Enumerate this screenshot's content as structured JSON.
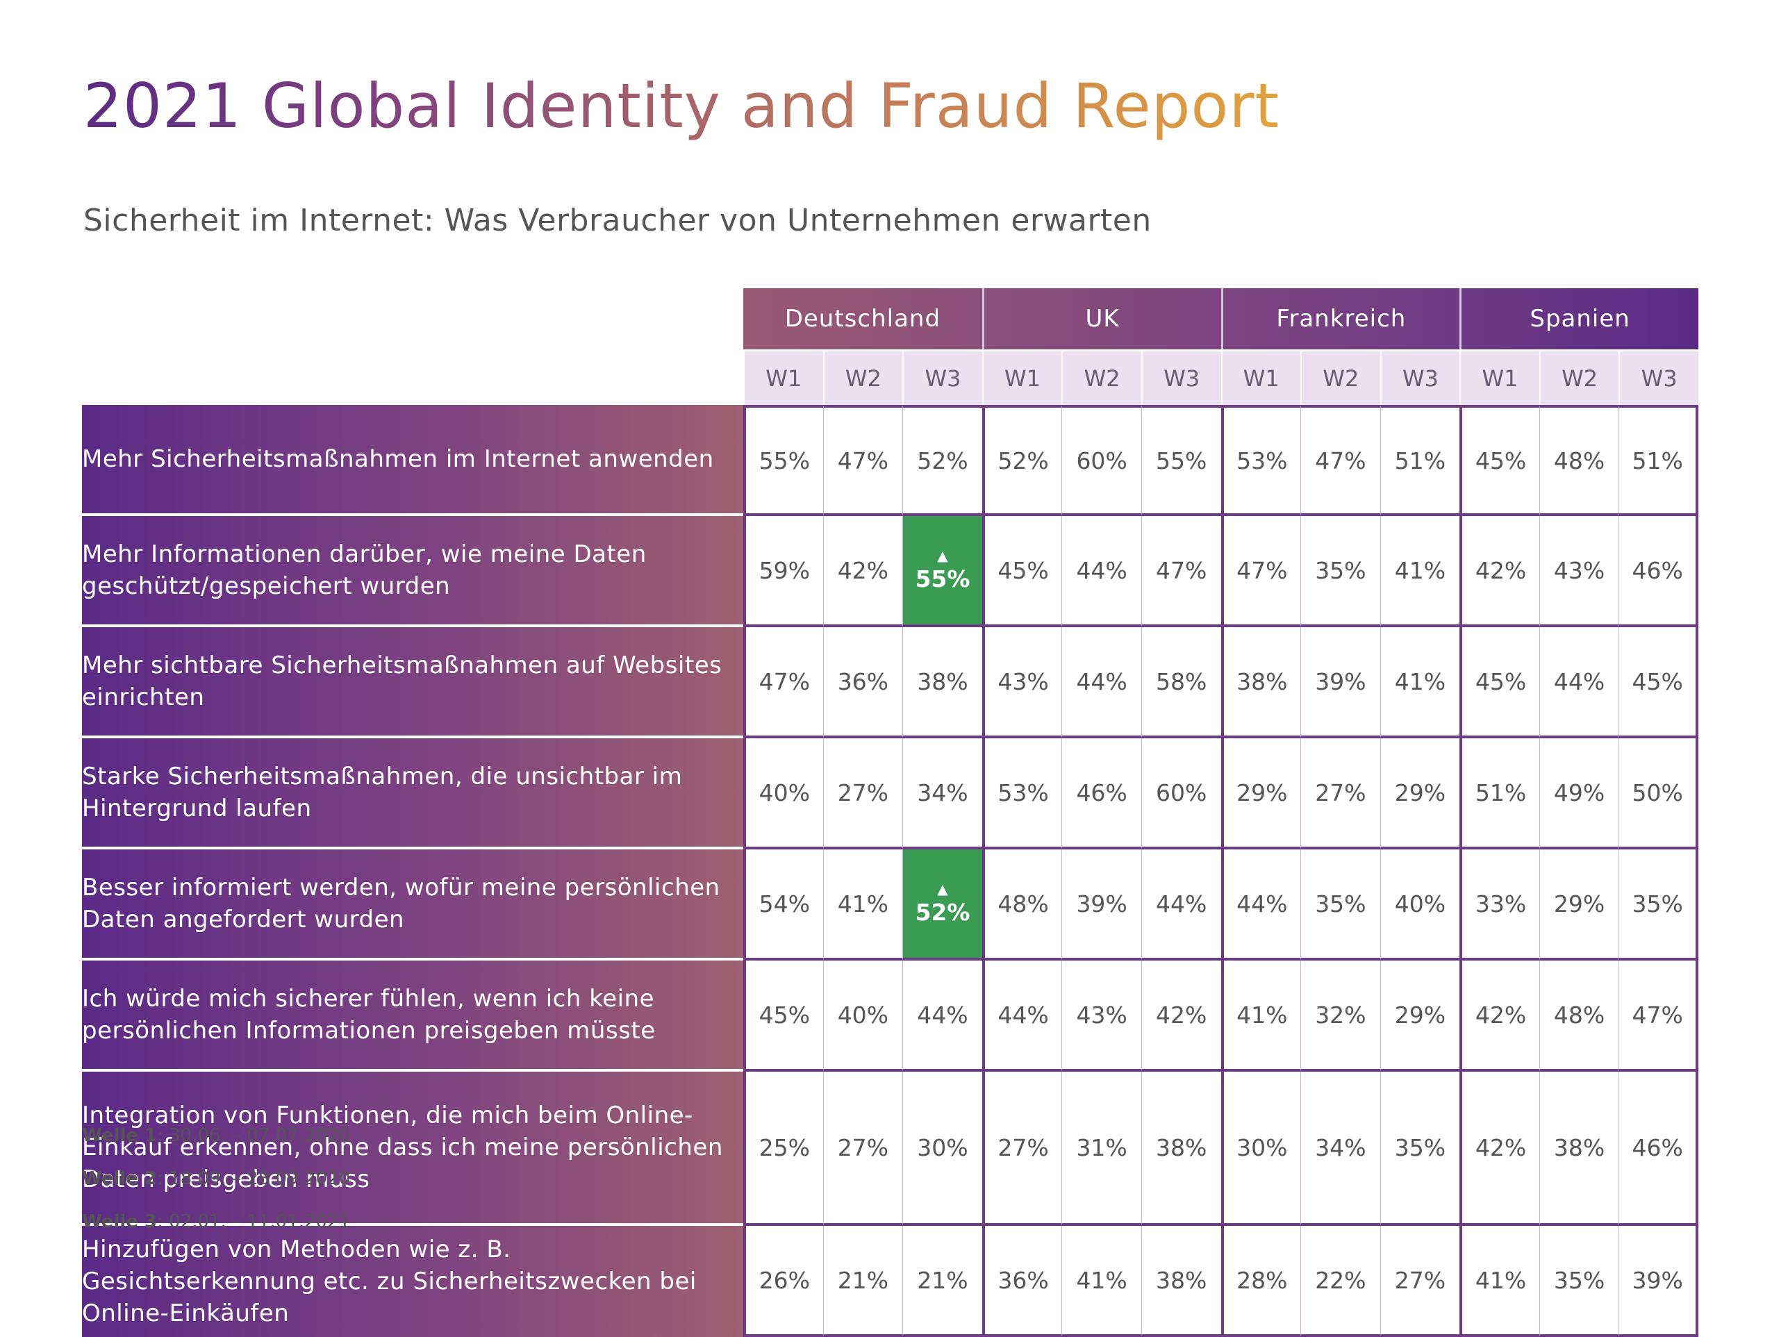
{
  "title": "2021 Global Identity and Fraud Report",
  "subtitle": "Sicherheit im Internet: Was Verbraucher von Unternehmen erwarten",
  "colors": {
    "title_gradient": [
      "#5b2a86",
      "#e3a23a"
    ],
    "label_gradient": [
      "#5b2a86",
      "#9e6070"
    ],
    "highlight": "#3a9b52",
    "wave_header_bg": "#ebe1f0",
    "group_border": "#6e3a86"
  },
  "chart_data": {
    "type": "table",
    "countries": [
      "Deutschland",
      "UK",
      "Frankreich",
      "Spanien"
    ],
    "waves": [
      "W1",
      "W2",
      "W3"
    ],
    "rows": [
      {
        "label": "Mehr Sicherheitsmaßnahmen im Internet anwenden",
        "values": [
          "55%",
          "47%",
          "52%",
          "52%",
          "60%",
          "55%",
          "53%",
          "47%",
          "51%",
          "45%",
          "48%",
          "51%"
        ]
      },
      {
        "label": "Mehr Informationen darüber, wie meine Daten geschützt/gespeichert wurden",
        "values": [
          "59%",
          "42%",
          "55%",
          "45%",
          "44%",
          "47%",
          "47%",
          "35%",
          "41%",
          "42%",
          "43%",
          "46%"
        ],
        "highlight_index": 2
      },
      {
        "label": "Mehr sichtbare Sicherheitsmaßnahmen auf Websites einrichten",
        "values": [
          "47%",
          "36%",
          "38%",
          "43%",
          "44%",
          "58%",
          "38%",
          "39%",
          "41%",
          "45%",
          "44%",
          "45%"
        ]
      },
      {
        "label": "Starke Sicherheitsmaßnahmen, die unsichtbar im Hintergrund laufen",
        "values": [
          "40%",
          "27%",
          "34%",
          "53%",
          "46%",
          "60%",
          "29%",
          "27%",
          "29%",
          "51%",
          "49%",
          "50%"
        ]
      },
      {
        "label": "Besser informiert werden, wofür meine persönlichen Daten angefordert wurden",
        "values": [
          "54%",
          "41%",
          "52%",
          "48%",
          "39%",
          "44%",
          "44%",
          "35%",
          "40%",
          "33%",
          "29%",
          "35%"
        ],
        "highlight_index": 2
      },
      {
        "label": "Ich würde mich sicherer fühlen, wenn ich keine persönlichen Informationen preisgeben müsste",
        "values": [
          "45%",
          "40%",
          "44%",
          "44%",
          "43%",
          "42%",
          "41%",
          "32%",
          "29%",
          "42%",
          "48%",
          "47%"
        ]
      },
      {
        "label": "Integration von Funktionen, die mich beim Online-Einkauf erkennen, ohne dass ich meine persönlichen Daten preisgeben muss",
        "values": [
          "25%",
          "27%",
          "30%",
          "27%",
          "31%",
          "38%",
          "30%",
          "34%",
          "35%",
          "42%",
          "38%",
          "46%"
        ]
      },
      {
        "label": "Hinzufügen von Methoden wie z. B. Gesichtserkennung etc. zu Sicherheitszwecken bei Online-Einkäufen",
        "values": [
          "26%",
          "21%",
          "21%",
          "36%",
          "41%",
          "38%",
          "28%",
          "22%",
          "27%",
          "41%",
          "35%",
          "39%"
        ]
      }
    ],
    "highlight_marker": "▲"
  },
  "notes": [
    {
      "label": "Welle 1",
      "text": ": 30.06. – 07.07.2020"
    },
    {
      "label": "Welle 2",
      "text": ": 18.09. – 28.09.2020"
    },
    {
      "label": "Welle 3",
      "text": ": 02.01. – 11.01.2021"
    }
  ]
}
